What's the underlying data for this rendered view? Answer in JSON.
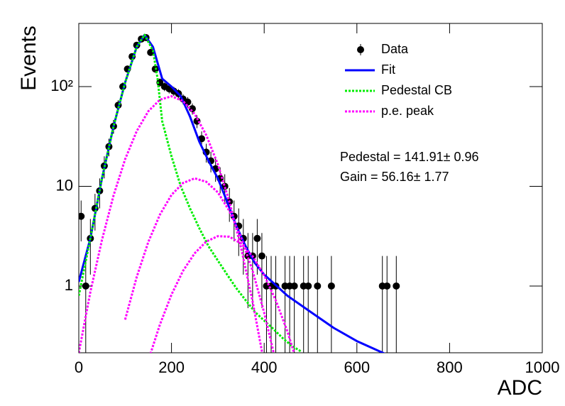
{
  "chart_data": {
    "type": "scatter",
    "log_y": true,
    "xlabel": "ADC",
    "ylabel": "Events",
    "xlim": [
      0,
      1000
    ],
    "xticks": [
      0,
      200,
      400,
      600,
      800,
      1000
    ],
    "ylim": [
      0.214,
      430
    ],
    "yticks": [
      1,
      10,
      {
        "value": 100,
        "label": "10²"
      }
    ],
    "legend": "top-right",
    "annotations": [
      "Pedestal = 141.91± 0.96",
      "Gain = 56.16± 1.77"
    ],
    "series": [
      {
        "name": "Data",
        "kind": "points",
        "color": "#000000",
        "x": [
          5,
          15,
          25,
          35,
          45,
          55,
          65,
          75,
          85,
          95,
          105,
          115,
          125,
          135,
          145,
          155,
          165,
          175,
          185,
          195,
          205,
          215,
          225,
          235,
          245,
          255,
          265,
          275,
          285,
          295,
          305,
          315,
          325,
          335,
          345,
          355,
          365,
          375,
          385,
          395,
          405,
          415,
          425,
          445,
          455,
          465,
          485,
          495,
          515,
          545,
          655,
          665,
          685
        ],
        "values": [
          5,
          1,
          3,
          6,
          9,
          16,
          25,
          40,
          65,
          100,
          150,
          200,
          260,
          300,
          310,
          220,
          150,
          110,
          100,
          95,
          90,
          85,
          75,
          70,
          60,
          45,
          30,
          22,
          18,
          15,
          12,
          10,
          7,
          5,
          4,
          3,
          2,
          2,
          3,
          2,
          1,
          1,
          1,
          1,
          1,
          1,
          1,
          1,
          1,
          1,
          1,
          1,
          1
        ],
        "errors": [
          2.2,
          1,
          1.7,
          2.4,
          3,
          4,
          5,
          6.3,
          8,
          10,
          12.2,
          14.1,
          16.1,
          17.3,
          17.6,
          14.8,
          12.2,
          10.5,
          10,
          9.7,
          9.5,
          9.2,
          8.7,
          8.4,
          7.7,
          6.7,
          5.5,
          4.7,
          4.2,
          3.9,
          3.5,
          3.2,
          2.6,
          2.2,
          2,
          1.7,
          1.4,
          1.4,
          1.7,
          1.4,
          1,
          1,
          1,
          1,
          1,
          1,
          1,
          1,
          1,
          1,
          1,
          1,
          1
        ]
      },
      {
        "name": "Fit",
        "kind": "line",
        "line_style": "solid",
        "color": "#0000ff",
        "x": [
          0,
          25,
          50,
          75,
          100,
          125,
          142,
          160,
          180,
          200,
          220,
          240,
          260,
          280,
          300,
          320,
          340,
          360,
          380,
          400,
          450,
          500,
          550,
          600,
          660
        ],
        "values": [
          1.1,
          3,
          12,
          40,
          110,
          250,
          330,
          250,
          120,
          100,
          80,
          50,
          28,
          18,
          12,
          7,
          4,
          2.5,
          1.7,
          1.3,
          0.8,
          0.55,
          0.38,
          0.28,
          0.21
        ]
      },
      {
        "name": "Pedestal CB",
        "kind": "line",
        "line_style": "dotted",
        "color": "#00ee00",
        "x": [
          0,
          25,
          50,
          75,
          100,
          125,
          142,
          160,
          170,
          180,
          200,
          220,
          240,
          260,
          280,
          300,
          320,
          340,
          360,
          380,
          400,
          420,
          440,
          460,
          480
        ],
        "values": [
          0.8,
          3,
          12,
          40,
          110,
          250,
          330,
          230,
          120,
          45,
          20,
          10,
          6,
          3.8,
          2.5,
          1.8,
          1.3,
          0.95,
          0.72,
          0.55,
          0.45,
          0.37,
          0.3,
          0.25,
          0.22
        ]
      },
      {
        "name": "p.e. peak",
        "kind": "line",
        "line_style": "dotted",
        "color": "#ff00ff",
        "x": [
          0,
          25,
          50,
          75,
          100,
          125,
          150,
          175,
          200,
          225,
          250,
          275,
          300,
          325,
          350,
          375,
          400,
          null,
          100,
          125,
          150,
          175,
          200,
          225,
          250,
          275,
          300,
          325,
          350,
          375,
          400,
          425,
          null,
          150,
          175,
          200,
          225,
          250,
          275,
          300,
          325,
          350,
          375,
          400,
          425,
          450,
          475
        ],
        "values": [
          0.213,
          0.87,
          2.91,
          8.1,
          18.7,
          35.7,
          56.5,
          73.8,
          80,
          71.7,
          53.1,
          32.6,
          16.6,
          7,
          2.44,
          0.7,
          0.167,
          null,
          0.46,
          1.23,
          2.76,
          5.2,
          8.2,
          10.8,
          12,
          11.1,
          8.7,
          5.65,
          3.09,
          1.42,
          0.54,
          0.175,
          null,
          0.179,
          0.41,
          0.82,
          1.42,
          2.13,
          2.79,
          3.16,
          3.12,
          2.67,
          1.99,
          1.28,
          0.72,
          0.35,
          0.149
        ]
      }
    ]
  }
}
